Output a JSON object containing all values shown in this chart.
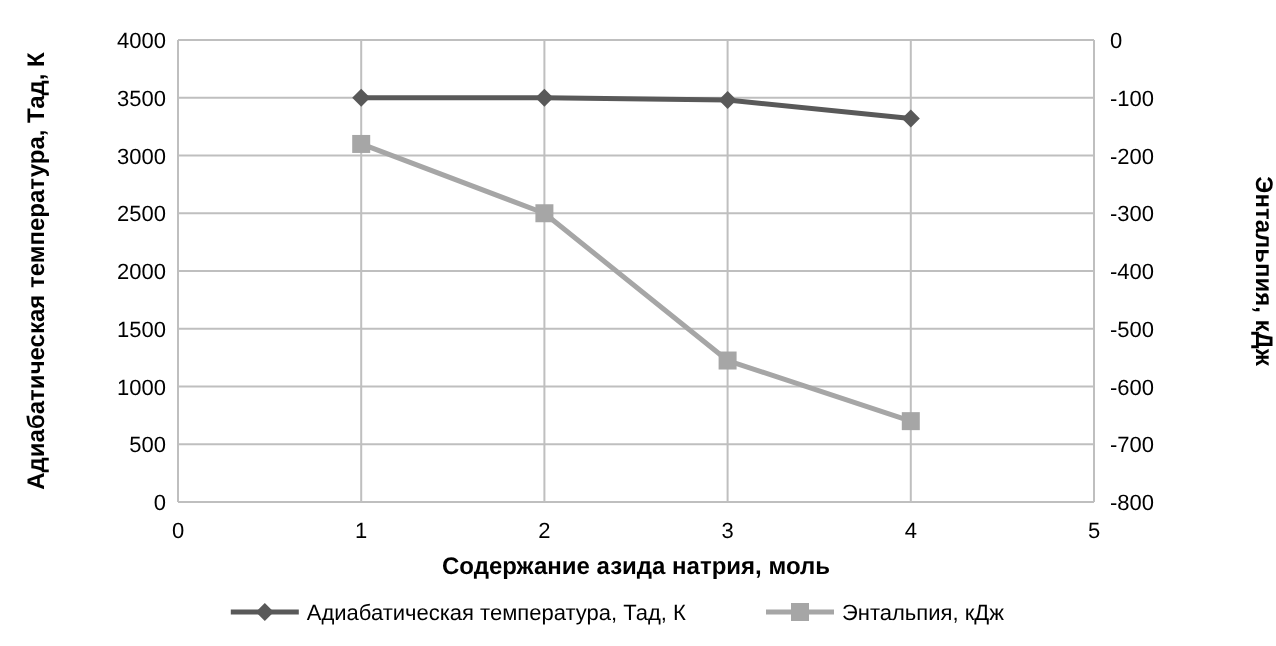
{
  "chart_data": {
    "type": "line",
    "xlabel": "Содержание азида натрия, моль",
    "ylabel": "Адиабатическая температура, Тад, К",
    "y2label": "Энтальпия, кДж",
    "x": [
      1,
      2,
      3,
      4
    ],
    "xlim": [
      0,
      5
    ],
    "xticks": [
      0,
      1,
      2,
      3,
      4,
      5
    ],
    "ylim": [
      0,
      4000
    ],
    "yticks": [
      0,
      500,
      1000,
      1500,
      2000,
      2500,
      3000,
      3500,
      4000
    ],
    "y2lim": [
      -800,
      0
    ],
    "y2ticks": [
      -800,
      -700,
      -600,
      -500,
      -400,
      -300,
      -200,
      -100,
      0
    ],
    "grid": true,
    "legend": "bottom",
    "series": [
      {
        "name": "Адиабатическая температура, Тад, К",
        "color": "#595959",
        "marker": "diamond",
        "values": [
          3500,
          3500,
          3480,
          3320
        ]
      },
      {
        "name": "Энтальпия, кДж",
        "color": "#a6a6a6",
        "marker": "square",
        "axis": "y2",
        "values": [
          -180,
          -300,
          -555,
          -660
        ]
      }
    ]
  }
}
